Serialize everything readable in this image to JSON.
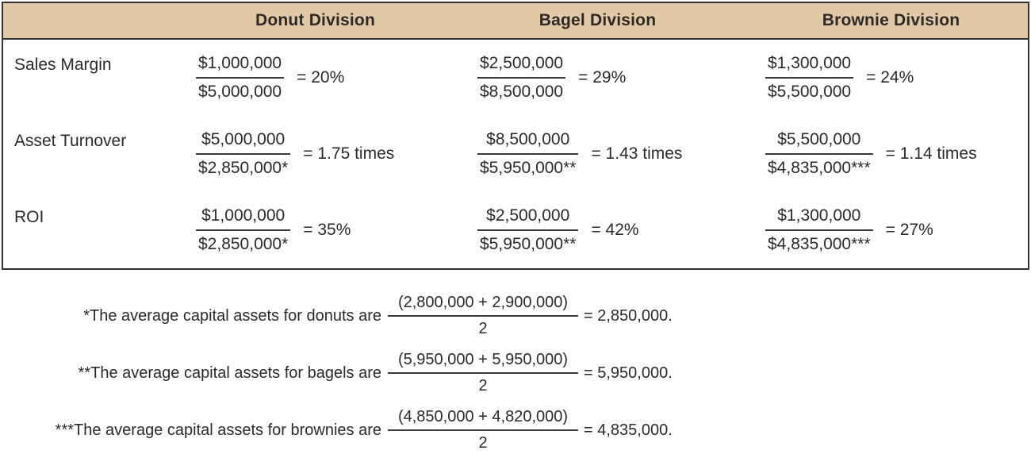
{
  "table": {
    "column_headers": [
      "Donut Division",
      "Bagel Division",
      "Brownie Division"
    ],
    "rows": [
      {
        "label": "Sales Margin",
        "cells": [
          {
            "numerator": "$1,000,000",
            "denominator": "$5,000,000",
            "result": "= 20%"
          },
          {
            "numerator": "$2,500,000",
            "denominator": "$8,500,000",
            "result": "= 29%"
          },
          {
            "numerator": "$1,300,000",
            "denominator": "$5,500,000",
            "result": "= 24%"
          }
        ]
      },
      {
        "label": "Asset Turnover",
        "cells": [
          {
            "numerator": "$5,000,000",
            "denominator": "$2,850,000*",
            "result": "= 1.75 times"
          },
          {
            "numerator": "$8,500,000",
            "denominator": "$5,950,000**",
            "result": "= 1.43 times"
          },
          {
            "numerator": "$5,500,000",
            "denominator": "$4,835,000***",
            "result": "= 1.14 times"
          }
        ]
      },
      {
        "label": "ROI",
        "cells": [
          {
            "numerator": "$1,000,000",
            "denominator": "$2,850,000*",
            "result": "= 35%"
          },
          {
            "numerator": "$2,500,000",
            "denominator": "$5,950,000**",
            "result": "= 42%"
          },
          {
            "numerator": "$1,300,000",
            "denominator": "$4,835,000***",
            "result": "= 27%"
          }
        ]
      }
    ]
  },
  "footnotes": [
    {
      "label": "*The average capital assets for donuts are",
      "numerator": "(2,800,000 + 2,900,000)",
      "denominator": "2",
      "result": "= 2,850,000."
    },
    {
      "label": "**The average capital assets for bagels are",
      "numerator": "(5,950,000 + 5,950,000)",
      "denominator": "2",
      "result": "= 5,950,000."
    },
    {
      "label": "***The average capital assets for brownies are",
      "numerator": "(4,850,000 + 4,820,000)",
      "denominator": "2",
      "result": "= 4,835,000."
    }
  ],
  "colors": {
    "header_background": "#e2c9a5",
    "border": "#373332",
    "text": "#2d2a28"
  }
}
